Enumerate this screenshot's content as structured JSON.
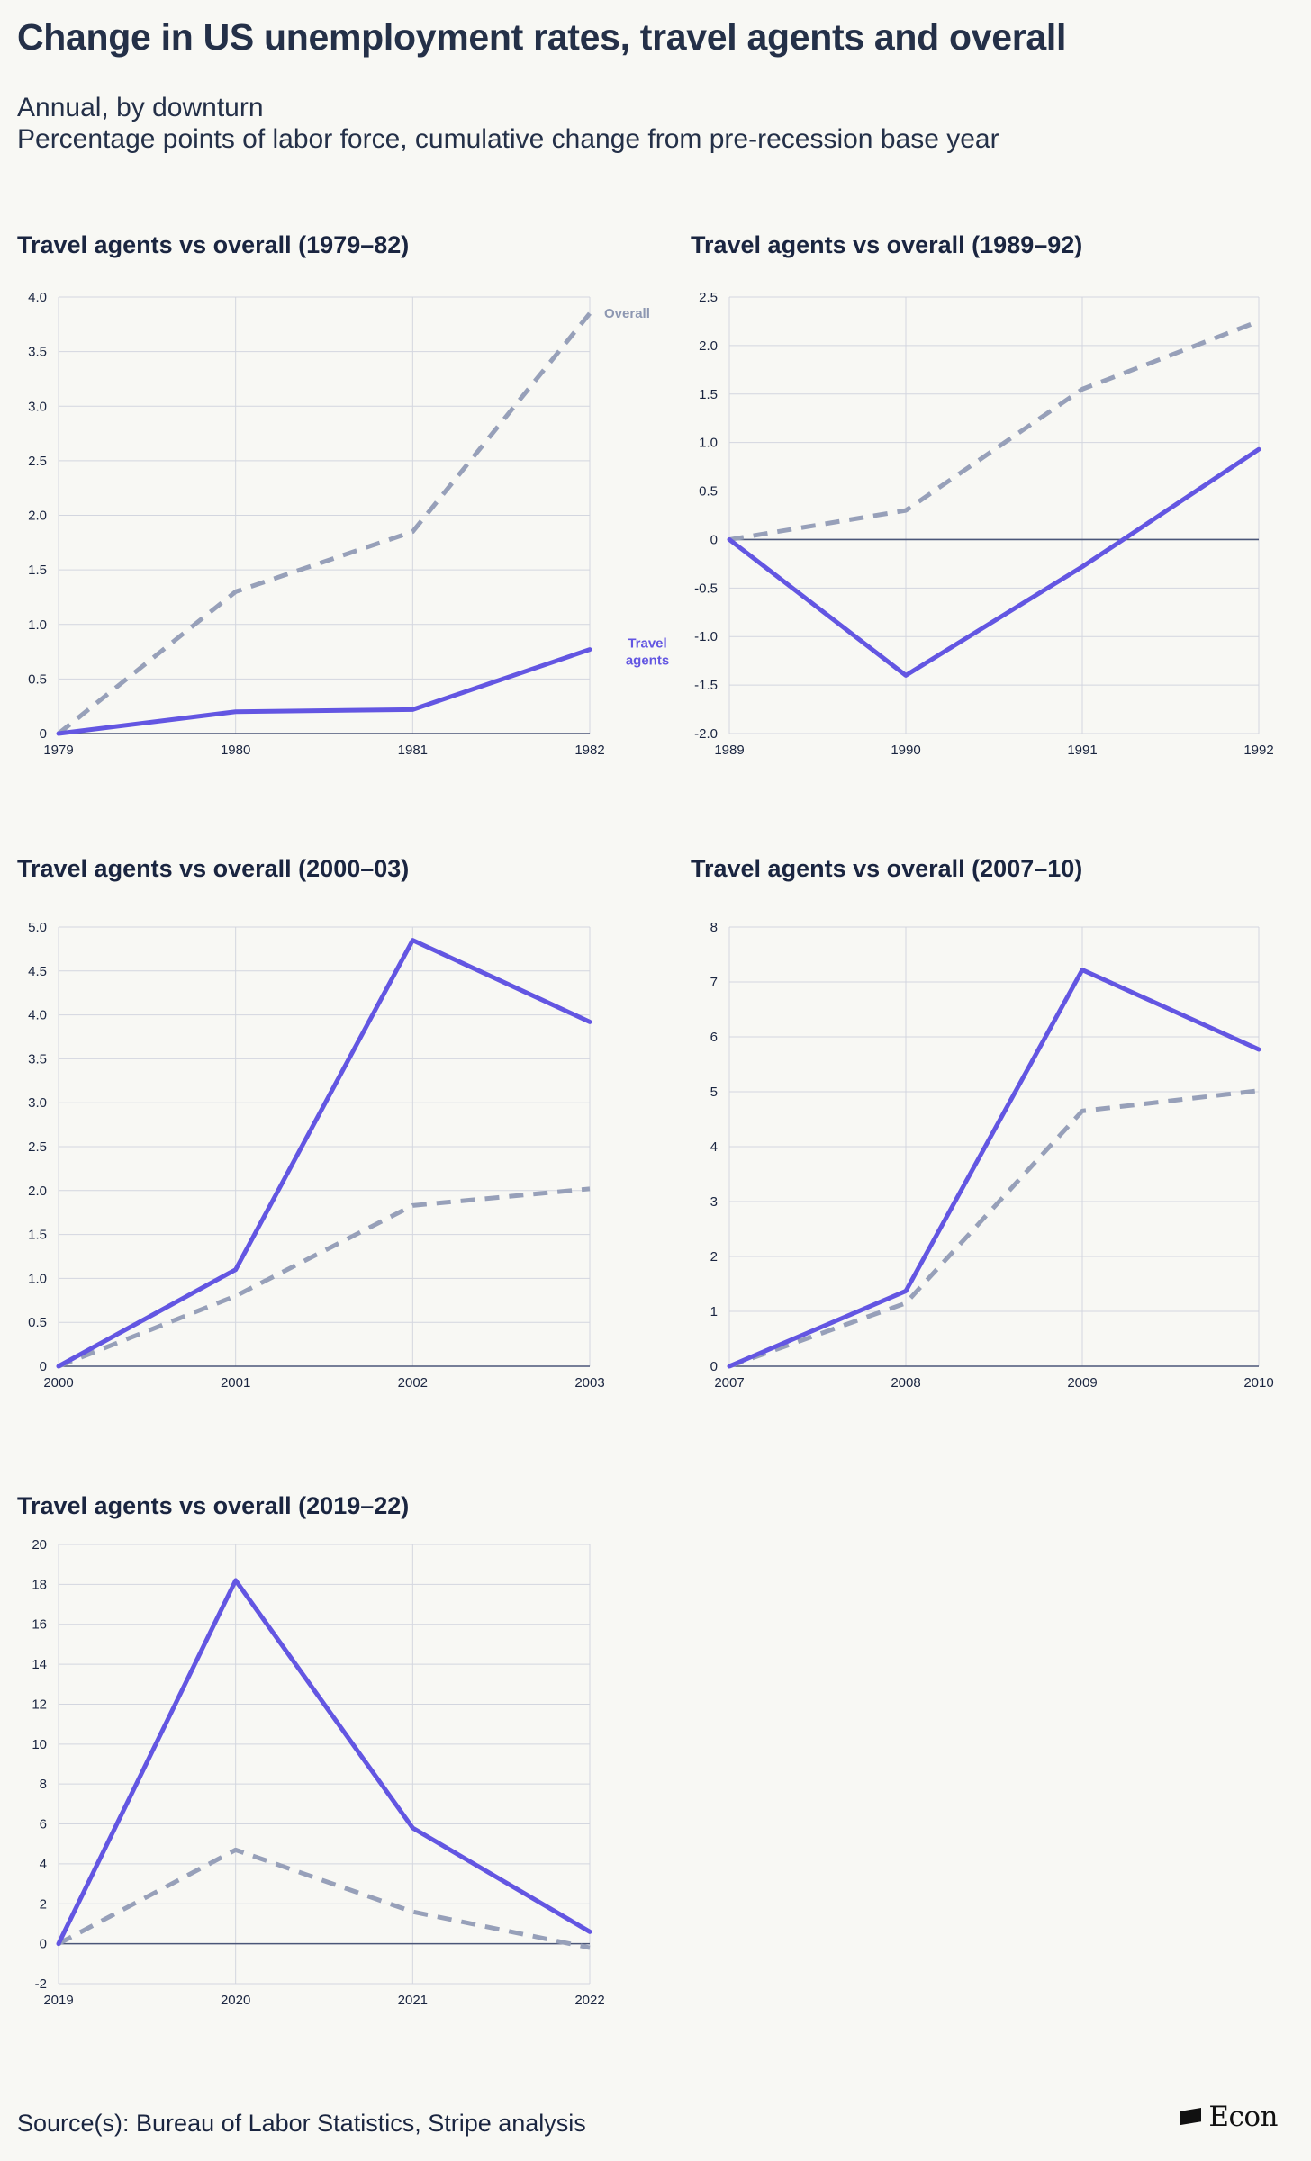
{
  "title": "Change in US unemployment rates, travel agents and overall",
  "subtitle_line1": "Annual, by downturn",
  "subtitle_line2": "Percentage points of labor force, cumulative change from pre-recession base year",
  "source": "Source(s): Bureau of Labor Statistics, Stripe analysis",
  "logo": {
    "text": "Econ"
  },
  "colors": {
    "travel": "#6356e2",
    "overall": "#97a0b9",
    "background": "#f8f8f4"
  },
  "chart_data": [
    {
      "type": "line",
      "title": "Travel agents vs overall (1979–82)",
      "categories": [
        "1979",
        "1980",
        "1981",
        "1982"
      ],
      "ylim": [
        0,
        4.0
      ],
      "yticks": [
        0,
        0.5,
        1.0,
        1.5,
        2.0,
        2.5,
        3.0,
        3.5,
        4.0
      ],
      "tick_labels": [
        "0",
        "0.5",
        "1.0",
        "1.5",
        "2.0",
        "2.5",
        "3.0",
        "3.5",
        "4.0"
      ],
      "series": [
        {
          "name": "Overall",
          "style": "dashed",
          "values": [
            0,
            1.3,
            1.85,
            3.85
          ]
        },
        {
          "name": "Travel agents",
          "style": "solid",
          "values": [
            0,
            0.2,
            0.22,
            0.77
          ]
        }
      ],
      "annotations": {
        "overall": "Overall",
        "travel_line1": "Travel",
        "travel_line2": "agents"
      }
    },
    {
      "type": "line",
      "title": "Travel agents vs overall (1989–92)",
      "categories": [
        "1989",
        "1990",
        "1991",
        "1992"
      ],
      "ylim": [
        -2.0,
        2.5
      ],
      "yticks": [
        -2.0,
        -1.5,
        -1.0,
        -0.5,
        0,
        0.5,
        1.0,
        1.5,
        2.0,
        2.5
      ],
      "tick_labels": [
        "-2.0",
        "-1.5",
        "-1.0",
        "-0.5",
        "0",
        "0.5",
        "1.0",
        "1.5",
        "2.0",
        "2.5"
      ],
      "series": [
        {
          "name": "Overall",
          "style": "dashed",
          "values": [
            0,
            0.3,
            1.55,
            2.25
          ]
        },
        {
          "name": "Travel agents",
          "style": "solid",
          "values": [
            0,
            -1.4,
            -0.28,
            0.93
          ]
        }
      ]
    },
    {
      "type": "line",
      "title": "Travel agents vs overall (2000–03)",
      "categories": [
        "2000",
        "2001",
        "2002",
        "2003"
      ],
      "ylim": [
        0,
        5.0
      ],
      "yticks": [
        0,
        0.5,
        1.0,
        1.5,
        2.0,
        2.5,
        3.0,
        3.5,
        4.0,
        4.5,
        5.0
      ],
      "tick_labels": [
        "0",
        "0.5",
        "1.0",
        "1.5",
        "2.0",
        "2.5",
        "3.0",
        "3.5",
        "4.0",
        "4.5",
        "5.0"
      ],
      "series": [
        {
          "name": "Overall",
          "style": "dashed",
          "values": [
            0,
            0.8,
            1.83,
            2.02
          ]
        },
        {
          "name": "Travel agents",
          "style": "solid",
          "values": [
            0,
            1.1,
            4.85,
            3.92
          ]
        }
      ]
    },
    {
      "type": "line",
      "title": "Travel agents vs overall (2007–10)",
      "categories": [
        "2007",
        "2008",
        "2009",
        "2010"
      ],
      "ylim": [
        0,
        8
      ],
      "yticks": [
        0,
        1,
        2,
        3,
        4,
        5,
        6,
        7,
        8
      ],
      "tick_labels": [
        "0",
        "1",
        "2",
        "3",
        "4",
        "5",
        "6",
        "7",
        "8"
      ],
      "series": [
        {
          "name": "Overall",
          "style": "dashed",
          "values": [
            0,
            1.15,
            4.65,
            5.02
          ]
        },
        {
          "name": "Travel agents",
          "style": "solid",
          "values": [
            0,
            1.37,
            7.22,
            5.77
          ]
        }
      ]
    },
    {
      "type": "line",
      "title": "Travel agents vs overall (2019–22)",
      "categories": [
        "2019",
        "2020",
        "2021",
        "2022"
      ],
      "ylim": [
        -2,
        20
      ],
      "yticks": [
        -2,
        0,
        2,
        4,
        6,
        8,
        10,
        12,
        14,
        16,
        18,
        20
      ],
      "tick_labels": [
        "-2",
        "0",
        "2",
        "4",
        "6",
        "8",
        "10",
        "12",
        "14",
        "16",
        "18",
        "20"
      ],
      "series": [
        {
          "name": "Overall",
          "style": "dashed",
          "values": [
            0,
            4.7,
            1.6,
            -0.2
          ]
        },
        {
          "name": "Travel agents",
          "style": "solid",
          "values": [
            0,
            18.2,
            5.8,
            0.6
          ]
        }
      ]
    }
  ]
}
